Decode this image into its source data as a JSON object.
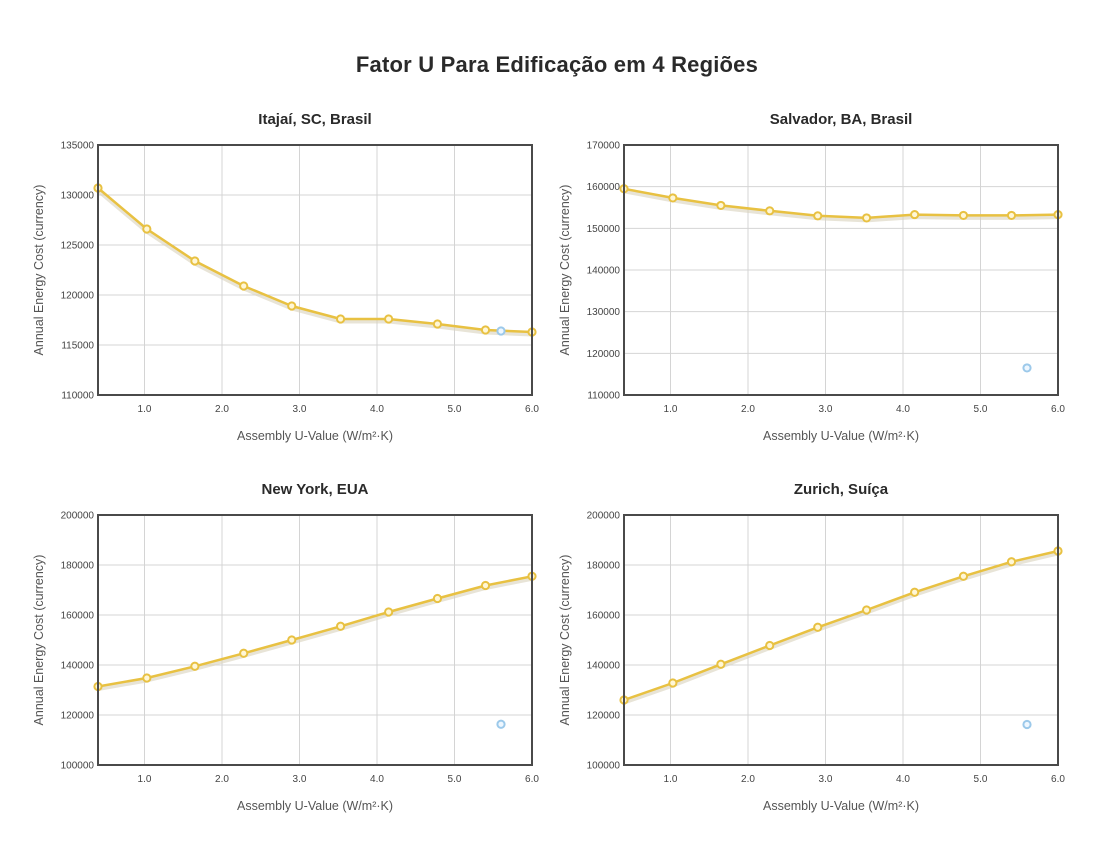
{
  "page_title": "Fator U Para Edificação em 4 Regiões",
  "chart_data": [
    {
      "type": "line",
      "title": "Itajaí, SC, Brasil",
      "xlabel": "Assembly U-Value (W/m²·K)",
      "ylabel": "Annual Energy Cost (currency)",
      "xlim": [
        0.4,
        6.0
      ],
      "ylim": [
        110000,
        135000
      ],
      "xticks": [
        1.0,
        2.0,
        3.0,
        4.0,
        5.0,
        6.0
      ],
      "xtick_labels": [
        "1.0",
        "2.0",
        "3.0",
        "4.0",
        "5.0",
        "6.0"
      ],
      "yticks": [
        110000,
        115000,
        120000,
        125000,
        130000,
        135000
      ],
      "ytick_labels": [
        "110000",
        "115000",
        "120000",
        "125000",
        "130000",
        "135000"
      ],
      "grid": true,
      "series": [
        {
          "color": "#e8c142",
          "x": [
            0.4,
            1.03,
            1.65,
            2.28,
            2.9,
            3.53,
            4.15,
            4.78,
            5.4,
            6.03
          ],
          "y": [
            130700,
            126600,
            123400,
            120900,
            118900,
            117600,
            117600,
            117100,
            116500,
            116300
          ]
        }
      ],
      "marker": {
        "x": 5.6,
        "y": 116400,
        "color": "#9cc9ea"
      }
    },
    {
      "type": "line",
      "title": "Salvador, BA, Brasil",
      "xlabel": "Assembly U-Value (W/m²·K)",
      "ylabel": "Annual Energy Cost (currency)",
      "xlim": [
        0.4,
        6.0
      ],
      "ylim": [
        110000,
        170000
      ],
      "xticks": [
        1.0,
        2.0,
        3.0,
        4.0,
        5.0,
        6.0
      ],
      "xtick_labels": [
        "1.0",
        "2.0",
        "3.0",
        "4.0",
        "5.0",
        "6.0"
      ],
      "yticks": [
        110000,
        120000,
        130000,
        140000,
        150000,
        160000,
        170000
      ],
      "ytick_labels": [
        "110000",
        "120000",
        "130000",
        "140000",
        "150000",
        "160000",
        "170000"
      ],
      "grid": true,
      "series": [
        {
          "color": "#e8c142",
          "x": [
            0.4,
            1.03,
            1.65,
            2.28,
            2.9,
            3.53,
            4.15,
            4.78,
            5.4,
            6.03
          ],
          "y": [
            159500,
            157300,
            155500,
            154200,
            153000,
            152500,
            153300,
            153100,
            153100,
            153300
          ]
        }
      ],
      "marker": {
        "x": 5.6,
        "y": 116500,
        "color": "#9cc9ea"
      }
    },
    {
      "type": "line",
      "title": "New York, EUA",
      "xlabel": "Assembly U-Value (W/m²·K)",
      "ylabel": "Annual Energy Cost (currency)",
      "xlim": [
        0.4,
        6.0
      ],
      "ylim": [
        100000,
        200000
      ],
      "xticks": [
        1.0,
        2.0,
        3.0,
        4.0,
        5.0,
        6.0
      ],
      "xtick_labels": [
        "1.0",
        "2.0",
        "3.0",
        "4.0",
        "5.0",
        "6.0"
      ],
      "yticks": [
        100000,
        120000,
        140000,
        160000,
        180000,
        200000
      ],
      "ytick_labels": [
        "100000",
        "120000",
        "140000",
        "160000",
        "180000",
        "200000"
      ],
      "grid": true,
      "series": [
        {
          "color": "#e8c142",
          "x": [
            0.4,
            1.03,
            1.65,
            2.28,
            2.9,
            3.53,
            4.15,
            4.78,
            5.4,
            6.03
          ],
          "y": [
            131400,
            134800,
            139500,
            144700,
            150000,
            155500,
            161200,
            166600,
            171800,
            175500
          ]
        }
      ],
      "marker": {
        "x": 5.6,
        "y": 116300,
        "color": "#9cc9ea"
      }
    },
    {
      "type": "line",
      "title": "Zurich, Suíça",
      "xlabel": "Assembly U-Value (W/m²·K)",
      "ylabel": "Annual Energy Cost (currency)",
      "xlim": [
        0.4,
        6.0
      ],
      "ylim": [
        100000,
        200000
      ],
      "xticks": [
        1.0,
        2.0,
        3.0,
        4.0,
        5.0,
        6.0
      ],
      "xtick_labels": [
        "1.0",
        "2.0",
        "3.0",
        "4.0",
        "5.0",
        "6.0"
      ],
      "yticks": [
        100000,
        120000,
        140000,
        160000,
        180000,
        200000
      ],
      "ytick_labels": [
        "100000",
        "120000",
        "140000",
        "160000",
        "180000",
        "200000"
      ],
      "grid": true,
      "series": [
        {
          "color": "#e8c142",
          "x": [
            0.4,
            1.03,
            1.65,
            2.28,
            2.9,
            3.53,
            4.15,
            4.78,
            5.4,
            6.03
          ],
          "y": [
            126000,
            132800,
            140300,
            147800,
            155100,
            162000,
            169100,
            175500,
            181300,
            185600
          ]
        }
      ],
      "marker": {
        "x": 5.6,
        "y": 116200,
        "color": "#9cc9ea"
      }
    }
  ]
}
